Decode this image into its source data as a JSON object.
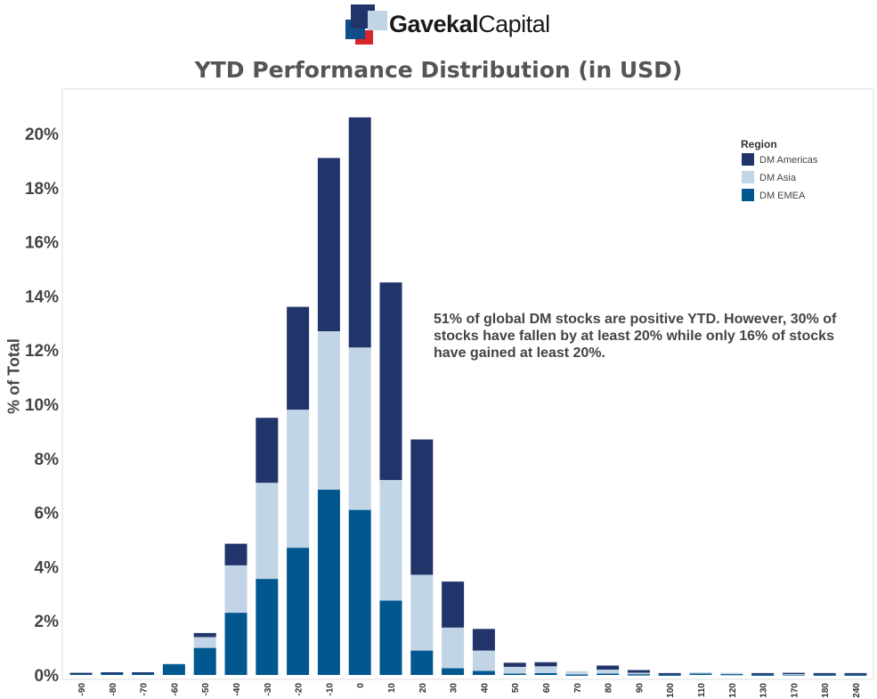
{
  "logo": {
    "brand_bold": "Gavekal",
    "brand_light": "Capital"
  },
  "colors": {
    "dm_americas": "#22356b",
    "dm_asia": "#c2d5e6",
    "dm_emea": "#01588f"
  },
  "chart_data": {
    "type": "bar",
    "stacked": true,
    "title": "YTD Performance Distribution (in USD)",
    "xlabel": "",
    "ylabel": "% of Total",
    "ylim": [
      0,
      20.5
    ],
    "y_ticks": [
      "0%",
      "2%",
      "4%",
      "6%",
      "8%",
      "10%",
      "12%",
      "14%",
      "16%",
      "18%",
      "20%"
    ],
    "y_tick_values": [
      0,
      2,
      4,
      6,
      8,
      10,
      12,
      14,
      16,
      18,
      20
    ],
    "grid": false,
    "legend_position": "top-right",
    "legend_title": "Region",
    "categories": [
      "-90",
      "-80",
      "-70",
      "-60",
      "-50",
      "-40",
      "-30",
      "-20",
      "-10",
      "0",
      "10",
      "20",
      "30",
      "40",
      "50",
      "60",
      "70",
      "80",
      "90",
      "100",
      "110",
      "120",
      "130",
      "170",
      "180",
      "240"
    ],
    "series": [
      {
        "name": "DM EMEA",
        "color": "#01588f",
        "values": [
          0.05,
          0.07,
          0.05,
          0.4,
          1.0,
          2.3,
          3.55,
          4.7,
          6.85,
          6.1,
          2.75,
          0.9,
          0.25,
          0.15,
          0.05,
          0.07,
          0.02,
          0.05,
          0.03,
          0.02,
          0.05,
          0.04,
          0.02,
          0.03,
          0.02,
          0.02
        ]
      },
      {
        "name": "DM Asia",
        "color": "#c2d5e6",
        "values": [
          0.0,
          0.0,
          0.0,
          0.0,
          0.4,
          1.75,
          3.55,
          5.1,
          5.85,
          6.0,
          4.45,
          2.8,
          1.5,
          0.75,
          0.25,
          0.25,
          0.12,
          0.15,
          0.05,
          0.0,
          0.05,
          0.04,
          0.0,
          0.02,
          0.0,
          0.0
        ]
      },
      {
        "name": "DM Americas",
        "color": "#22356b",
        "values": [
          0.03,
          0.03,
          0.05,
          0.0,
          0.15,
          0.8,
          2.4,
          3.8,
          6.4,
          8.5,
          7.3,
          5.0,
          1.7,
          0.8,
          0.15,
          0.15,
          0.0,
          0.15,
          0.1,
          0.05,
          0.0,
          0.0,
          0.05,
          0.03,
          0.05,
          0.05
        ]
      }
    ],
    "legend_order": [
      "DM Americas",
      "DM Asia",
      "DM EMEA"
    ],
    "annotation": "51% of global DM stocks are positive YTD. However, 30% of stocks have fallen by at least 20% while only 16% of stocks have gained at least 20%."
  }
}
